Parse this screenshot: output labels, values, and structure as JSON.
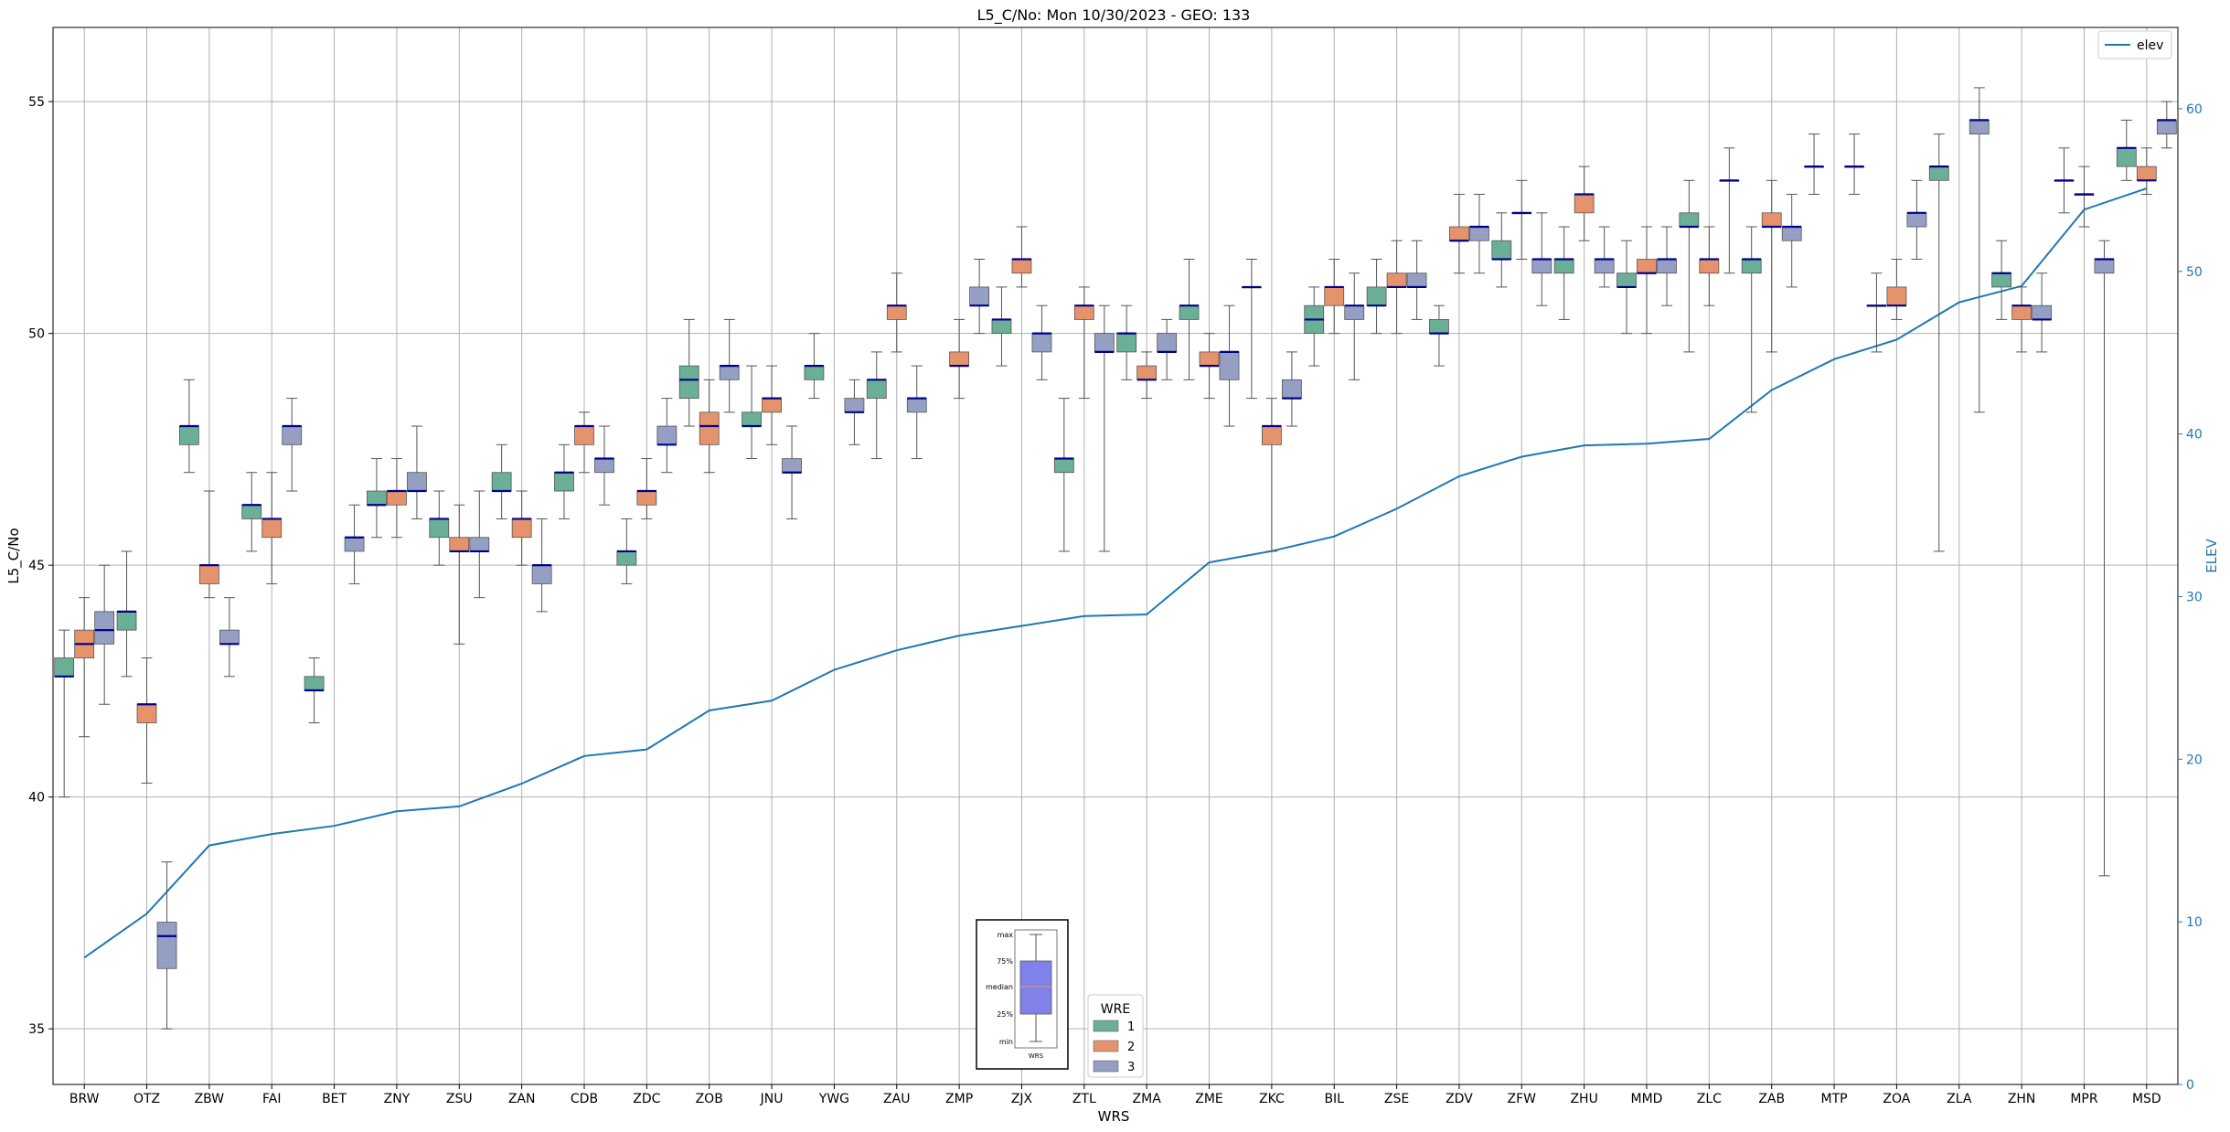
{
  "chart_data": {
    "type": "box",
    "title": "L5_C/No: Mon 10/30/2023 - GEO: 133",
    "xlabel": "WRS",
    "ylabel": "L5_C/No",
    "ylabel_right": "ELEV",
    "ylim": [
      33.8,
      56.6
    ],
    "yticks": [
      35,
      40,
      45,
      50,
      55
    ],
    "ylim_right": [
      0,
      65
    ],
    "yticks_right": [
      0,
      10,
      20,
      30,
      40,
      50,
      60
    ],
    "grid": true,
    "categories": [
      "BRW",
      "OTZ",
      "ZBW",
      "FAI",
      "BET",
      "ZNY",
      "ZSU",
      "ZAN",
      "CDB",
      "ZDC",
      "ZOB",
      "JNU",
      "YWG",
      "ZAU",
      "ZMP",
      "ZJX",
      "ZTL",
      "ZMA",
      "ZME",
      "ZKC",
      "BIL",
      "ZSE",
      "ZDV",
      "ZFW",
      "ZHU",
      "MMD",
      "ZLC",
      "ZAB",
      "MTP",
      "ZOA",
      "ZLA",
      "ZHN",
      "MPR",
      "MSD"
    ],
    "legend_wre": {
      "title": "WRE",
      "placement": "bottom-center",
      "entries": [
        {
          "name": "1",
          "color": "#6aaf96"
        },
        {
          "name": "2",
          "color": "#e4936c"
        },
        {
          "name": "3",
          "color": "#949fc3"
        }
      ]
    },
    "legend_line": {
      "placement": "top-right",
      "label": "elev",
      "color": "#1f77b4"
    },
    "key_box": {
      "placement": "bottom-center",
      "labels": [
        "max",
        "75%",
        "median",
        "25%",
        "min"
      ],
      "caption": "WRS",
      "color": "#8181ea"
    },
    "median_color": "#00008b",
    "elev": [
      7.8,
      10.5,
      14.7,
      15.4,
      15.9,
      16.8,
      17.1,
      18.5,
      20.2,
      20.6,
      23.0,
      23.6,
      25.5,
      26.7,
      27.6,
      28.2,
      28.8,
      28.9,
      32.1,
      32.8,
      33.7,
      35.4,
      37.4,
      38.6,
      39.3,
      39.4,
      39.7,
      42.7,
      44.6,
      45.8,
      48.1,
      49.1,
      53.8,
      55.1
    ],
    "series": [
      {
        "name": "1",
        "boxes": [
          {
            "min": 40.0,
            "q1": 42.6,
            "median": 42.6,
            "q3": 43.0,
            "max": 43.6
          },
          {
            "min": 42.6,
            "q1": 43.6,
            "median": 44.0,
            "q3": 44.0,
            "max": 45.3
          },
          {
            "min": 47.0,
            "q1": 47.6,
            "median": 48.0,
            "q3": 48.0,
            "max": 49.0
          },
          {
            "min": 45.3,
            "q1": 46.0,
            "median": 46.3,
            "q3": 46.3,
            "max": 47.0
          },
          {
            "min": 41.6,
            "q1": 42.3,
            "median": 42.3,
            "q3": 42.6,
            "max": 43.0
          },
          {
            "min": 45.6,
            "q1": 46.3,
            "median": 46.3,
            "q3": 46.6,
            "max": 47.3
          },
          {
            "min": 45.0,
            "q1": 45.6,
            "median": 46.0,
            "q3": 46.0,
            "max": 46.6
          },
          {
            "min": 46.0,
            "q1": 46.6,
            "median": 46.6,
            "q3": 47.0,
            "max": 47.6
          },
          {
            "min": 46.0,
            "q1": 46.6,
            "median": 47.0,
            "q3": 47.0,
            "max": 47.6
          },
          {
            "min": 44.6,
            "q1": 45.0,
            "median": 45.3,
            "q3": 45.3,
            "max": 46.0
          },
          {
            "min": 48.0,
            "q1": 48.6,
            "median": 49.0,
            "q3": 49.3,
            "max": 50.3
          },
          {
            "min": 47.3,
            "q1": 48.0,
            "median": 48.0,
            "q3": 48.3,
            "max": 49.3
          },
          {
            "min": 48.6,
            "q1": 49.0,
            "median": 49.3,
            "q3": 49.3,
            "max": 50.0
          },
          {
            "min": 47.3,
            "q1": 48.6,
            "median": 49.0,
            "q3": 49.0,
            "max": 49.6
          },
          null,
          {
            "min": 49.3,
            "q1": 50.0,
            "median": 50.3,
            "q3": 50.3,
            "max": 51.0
          },
          {
            "min": 45.3,
            "q1": 47.0,
            "median": 47.3,
            "q3": 47.3,
            "max": 48.6
          },
          {
            "min": 49.0,
            "q1": 49.6,
            "median": 50.0,
            "q3": 50.0,
            "max": 50.6
          },
          {
            "min": 49.0,
            "q1": 50.3,
            "median": 50.6,
            "q3": 50.6,
            "max": 51.6
          },
          {
            "min": 48.6,
            "q1": 51.0,
            "median": 51.0,
            "q3": 51.0,
            "max": 51.6
          },
          {
            "min": 49.3,
            "q1": 50.0,
            "median": 50.3,
            "q3": 50.6,
            "max": 51.0
          },
          {
            "min": 50.0,
            "q1": 50.6,
            "median": 50.6,
            "q3": 51.0,
            "max": 51.6
          },
          {
            "min": 49.3,
            "q1": 50.0,
            "median": 50.0,
            "q3": 50.3,
            "max": 50.6
          },
          {
            "min": 51.0,
            "q1": 51.6,
            "median": 51.6,
            "q3": 52.0,
            "max": 52.6
          },
          {
            "min": 50.3,
            "q1": 51.3,
            "median": 51.6,
            "q3": 51.6,
            "max": 52.3
          },
          {
            "min": 50.0,
            "q1": 51.0,
            "median": 51.0,
            "q3": 51.3,
            "max": 52.0
          },
          {
            "min": 49.6,
            "q1": 52.3,
            "median": 52.3,
            "q3": 52.6,
            "max": 53.3
          },
          {
            "min": 48.3,
            "q1": 51.3,
            "median": 51.6,
            "q3": 51.6,
            "max": 52.3
          },
          {
            "min": 53.0,
            "q1": 53.6,
            "median": 53.6,
            "q3": 53.6,
            "max": 54.3
          },
          {
            "min": 49.6,
            "q1": 50.6,
            "median": 50.6,
            "q3": 50.6,
            "max": 51.3
          },
          {
            "min": 45.3,
            "q1": 53.3,
            "median": 53.6,
            "q3": 53.6,
            "max": 54.3
          },
          {
            "min": 50.3,
            "q1": 51.0,
            "median": 51.3,
            "q3": 51.3,
            "max": 52.0
          },
          {
            "min": 52.6,
            "q1": 53.3,
            "median": 53.3,
            "q3": 53.3,
            "max": 54.0
          },
          {
            "min": 53.3,
            "q1": 53.6,
            "median": 54.0,
            "q3": 54.0,
            "max": 54.6
          }
        ]
      },
      {
        "name": "2",
        "boxes": [
          {
            "min": 41.3,
            "q1": 43.0,
            "median": 43.3,
            "q3": 43.6,
            "max": 44.3
          },
          {
            "min": 40.3,
            "q1": 41.6,
            "median": 42.0,
            "q3": 42.0,
            "max": 43.0
          },
          {
            "min": 44.3,
            "q1": 44.6,
            "median": 45.0,
            "q3": 45.0,
            "max": 46.6
          },
          {
            "min": 44.6,
            "q1": 45.6,
            "median": 46.0,
            "q3": 46.0,
            "max": 47.0
          },
          null,
          {
            "min": 45.6,
            "q1": 46.3,
            "median": 46.6,
            "q3": 46.6,
            "max": 47.3
          },
          {
            "min": 43.3,
            "q1": 45.3,
            "median": 45.3,
            "q3": 45.6,
            "max": 46.3
          },
          {
            "min": 45.0,
            "q1": 45.6,
            "median": 46.0,
            "q3": 46.0,
            "max": 46.6
          },
          {
            "min": 47.0,
            "q1": 47.6,
            "median": 48.0,
            "q3": 48.0,
            "max": 48.3
          },
          {
            "min": 46.0,
            "q1": 46.3,
            "median": 46.6,
            "q3": 46.6,
            "max": 47.3
          },
          {
            "min": 47.0,
            "q1": 47.6,
            "median": 48.0,
            "q3": 48.3,
            "max": 49.0
          },
          {
            "min": 47.6,
            "q1": 48.3,
            "median": 48.6,
            "q3": 48.6,
            "max": 49.3
          },
          null,
          {
            "min": 49.6,
            "q1": 50.3,
            "median": 50.6,
            "q3": 50.6,
            "max": 51.3
          },
          {
            "min": 48.6,
            "q1": 49.3,
            "median": 49.3,
            "q3": 49.6,
            "max": 50.3
          },
          {
            "min": 51.0,
            "q1": 51.3,
            "median": 51.6,
            "q3": 51.6,
            "max": 52.3
          },
          {
            "min": 48.6,
            "q1": 50.3,
            "median": 50.6,
            "q3": 50.6,
            "max": 51.0
          },
          {
            "min": 48.6,
            "q1": 49.0,
            "median": 49.0,
            "q3": 49.3,
            "max": 49.6
          },
          {
            "min": 48.6,
            "q1": 49.3,
            "median": 49.3,
            "q3": 49.6,
            "max": 50.0
          },
          {
            "min": 45.3,
            "q1": 47.6,
            "median": 48.0,
            "q3": 48.0,
            "max": 48.6
          },
          {
            "min": 50.0,
            "q1": 50.6,
            "median": 51.0,
            "q3": 51.0,
            "max": 51.6
          },
          {
            "min": 50.0,
            "q1": 51.0,
            "median": 51.0,
            "q3": 51.3,
            "max": 52.0
          },
          {
            "min": 51.3,
            "q1": 52.0,
            "median": 52.0,
            "q3": 52.3,
            "max": 53.0
          },
          {
            "min": 51.6,
            "q1": 52.6,
            "median": 52.6,
            "q3": 52.6,
            "max": 53.3
          },
          {
            "min": 52.0,
            "q1": 52.6,
            "median": 53.0,
            "q3": 53.0,
            "max": 53.6
          },
          {
            "min": 50.0,
            "q1": 51.3,
            "median": 51.3,
            "q3": 51.6,
            "max": 52.3
          },
          {
            "min": 50.6,
            "q1": 51.3,
            "median": 51.6,
            "q3": 51.6,
            "max": 52.3
          },
          {
            "min": 49.6,
            "q1": 52.3,
            "median": 52.3,
            "q3": 52.6,
            "max": 53.3
          },
          null,
          {
            "min": 50.3,
            "q1": 50.6,
            "median": 50.6,
            "q3": 51.0,
            "max": 51.6
          },
          null,
          {
            "min": 49.6,
            "q1": 50.3,
            "median": 50.6,
            "q3": 50.6,
            "max": 51.0
          },
          {
            "min": 52.3,
            "q1": 53.0,
            "median": 53.0,
            "q3": 53.0,
            "max": 53.6
          },
          {
            "min": 53.0,
            "q1": 53.3,
            "median": 53.3,
            "q3": 53.6,
            "max": 54.0
          }
        ]
      },
      {
        "name": "3",
        "boxes": [
          {
            "min": 42.0,
            "q1": 43.3,
            "median": 43.6,
            "q3": 44.0,
            "max": 45.0
          },
          {
            "min": 35.0,
            "q1": 36.3,
            "median": 37.0,
            "q3": 37.3,
            "max": 38.6
          },
          {
            "min": 42.6,
            "q1": 43.3,
            "median": 43.3,
            "q3": 43.6,
            "max": 44.3
          },
          {
            "min": 46.6,
            "q1": 47.6,
            "median": 48.0,
            "q3": 48.0,
            "max": 48.6
          },
          {
            "min": 44.6,
            "q1": 45.3,
            "median": 45.6,
            "q3": 45.6,
            "max": 46.3
          },
          {
            "min": 46.0,
            "q1": 46.6,
            "median": 46.6,
            "q3": 47.0,
            "max": 48.0
          },
          {
            "min": 44.3,
            "q1": 45.3,
            "median": 45.3,
            "q3": 45.6,
            "max": 46.6
          },
          {
            "min": 44.0,
            "q1": 44.6,
            "median": 45.0,
            "q3": 45.0,
            "max": 46.0
          },
          {
            "min": 46.3,
            "q1": 47.0,
            "median": 47.3,
            "q3": 47.3,
            "max": 48.0
          },
          {
            "min": 47.0,
            "q1": 47.6,
            "median": 47.6,
            "q3": 48.0,
            "max": 48.6
          },
          {
            "min": 48.3,
            "q1": 49.0,
            "median": 49.3,
            "q3": 49.3,
            "max": 50.3
          },
          {
            "min": 46.0,
            "q1": 47.0,
            "median": 47.0,
            "q3": 47.3,
            "max": 48.0
          },
          {
            "min": 47.6,
            "q1": 48.3,
            "median": 48.3,
            "q3": 48.6,
            "max": 49.0
          },
          {
            "min": 47.3,
            "q1": 48.3,
            "median": 48.6,
            "q3": 48.6,
            "max": 49.3
          },
          {
            "min": 50.0,
            "q1": 50.6,
            "median": 50.6,
            "q3": 51.0,
            "max": 51.6
          },
          {
            "min": 49.0,
            "q1": 49.6,
            "median": 50.0,
            "q3": 50.0,
            "max": 50.6
          },
          {
            "min": 45.3,
            "q1": 49.6,
            "median": 49.6,
            "q3": 50.0,
            "max": 50.6
          },
          {
            "min": 49.0,
            "q1": 49.6,
            "median": 49.6,
            "q3": 50.0,
            "max": 50.3
          },
          {
            "min": 48.0,
            "q1": 49.0,
            "median": 49.6,
            "q3": 49.6,
            "max": 50.6
          },
          {
            "min": 48.0,
            "q1": 48.6,
            "median": 48.6,
            "q3": 49.0,
            "max": 49.6
          },
          {
            "min": 49.0,
            "q1": 50.3,
            "median": 50.6,
            "q3": 50.6,
            "max": 51.3
          },
          {
            "min": 50.3,
            "q1": 51.0,
            "median": 51.0,
            "q3": 51.3,
            "max": 52.0
          },
          {
            "min": 51.3,
            "q1": 52.0,
            "median": 52.3,
            "q3": 52.3,
            "max": 53.0
          },
          {
            "min": 50.6,
            "q1": 51.3,
            "median": 51.6,
            "q3": 51.6,
            "max": 52.6
          },
          {
            "min": 51.0,
            "q1": 51.3,
            "median": 51.6,
            "q3": 51.6,
            "max": 52.3
          },
          {
            "min": 50.6,
            "q1": 51.3,
            "median": 51.6,
            "q3": 51.6,
            "max": 52.3
          },
          {
            "min": 51.3,
            "q1": 53.3,
            "median": 53.3,
            "q3": 53.3,
            "max": 54.0
          },
          {
            "min": 51.0,
            "q1": 52.0,
            "median": 52.3,
            "q3": 52.3,
            "max": 53.0
          },
          {
            "min": 53.0,
            "q1": 53.6,
            "median": 53.6,
            "q3": 53.6,
            "max": 54.3
          },
          {
            "min": 51.6,
            "q1": 52.3,
            "median": 52.6,
            "q3": 52.6,
            "max": 53.3
          },
          {
            "min": 48.3,
            "q1": 54.3,
            "median": 54.6,
            "q3": 54.6,
            "max": 55.3
          },
          {
            "min": 49.6,
            "q1": 50.3,
            "median": 50.3,
            "q3": 50.6,
            "max": 51.3
          },
          {
            "min": 38.3,
            "q1": 51.3,
            "median": 51.6,
            "q3": 51.6,
            "max": 52.0
          },
          {
            "min": 54.0,
            "q1": 54.3,
            "median": 54.6,
            "q3": 54.6,
            "max": 55.0
          }
        ]
      }
    ]
  }
}
